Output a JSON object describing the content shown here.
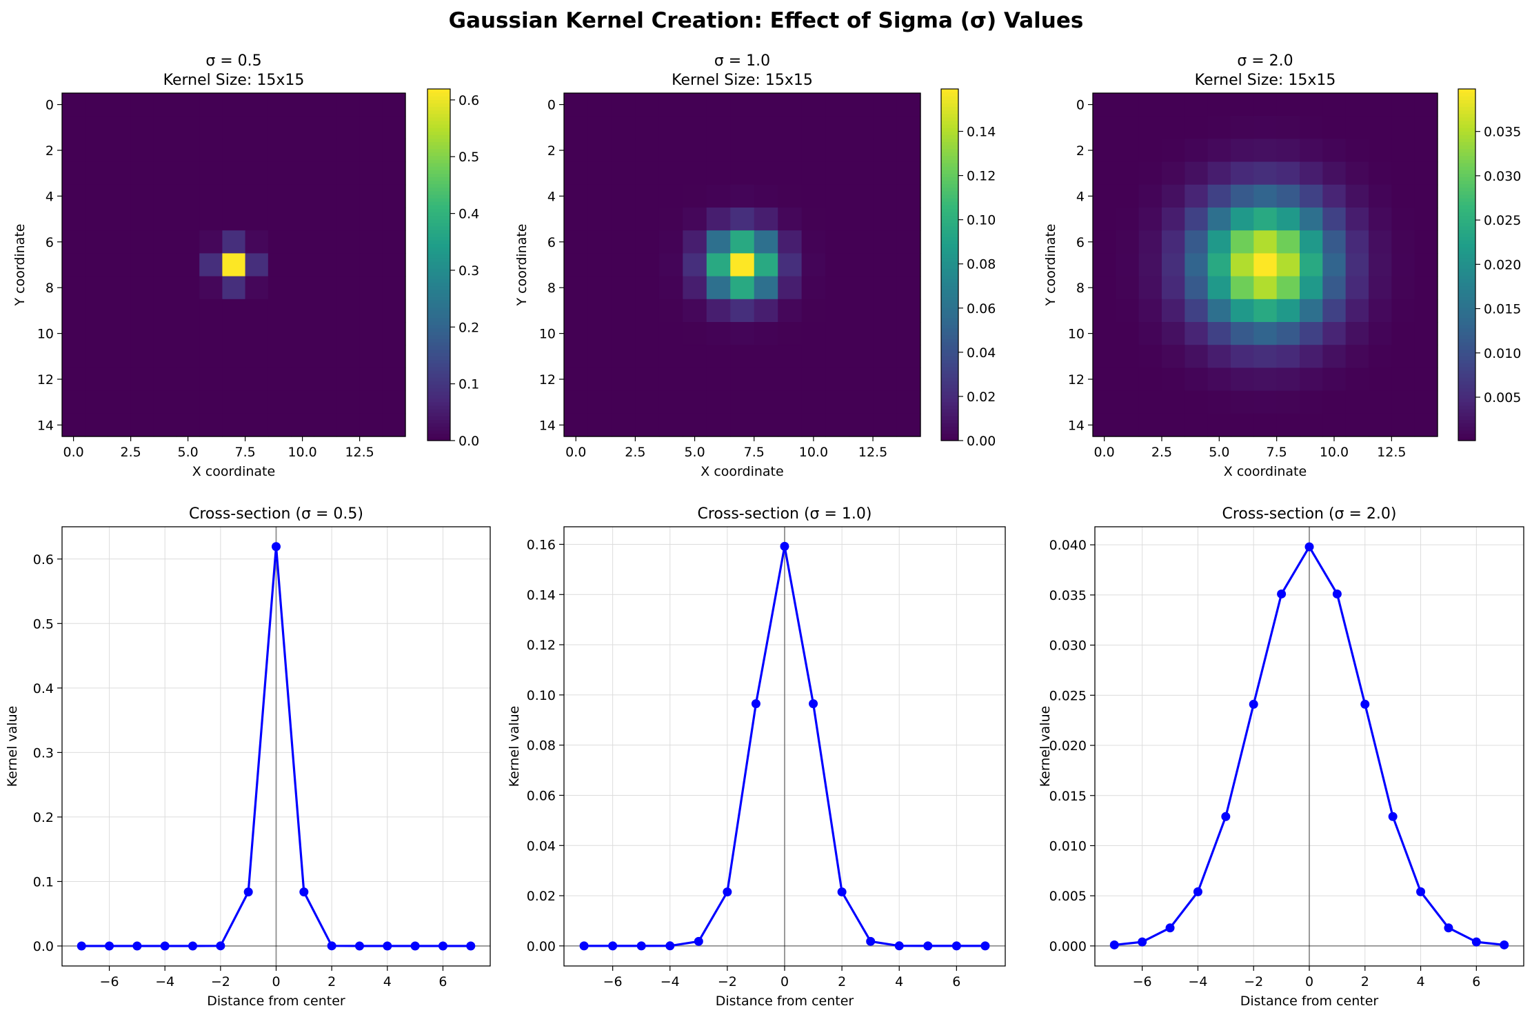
{
  "figure": {
    "title": "Gaussian Kernel Creation: Effect of Sigma (σ) Values"
  },
  "colormap": {
    "name": "viridis",
    "stops": [
      "#440154",
      "#482878",
      "#3e4989",
      "#31688e",
      "#26828e",
      "#1f9e89",
      "#35b779",
      "#6ece58",
      "#b5de2b",
      "#fde725"
    ]
  },
  "line_color": "#0000ff",
  "chart_data": [
    {
      "type": "heatmap",
      "sigma": 0.5,
      "title_line1": "σ = 0.5",
      "title_line2": "Kernel Size: 15x15",
      "xlabel": "X coordinate",
      "ylabel": "Y coordinate",
      "size": 15,
      "x_ticks": [
        "0.0",
        "2.5",
        "5.0",
        "7.5",
        "10.0",
        "12.5"
      ],
      "y_ticks": [
        "0",
        "2",
        "4",
        "6",
        "8",
        "10",
        "12",
        "14"
      ],
      "value_range": [
        0,
        0.6193
      ],
      "colorbar_ticks": [
        "0.0",
        "0.1",
        "0.2",
        "0.3",
        "0.4",
        "0.5",
        "0.6"
      ],
      "colorbar_tick_values": [
        0,
        0.1,
        0.2,
        0.3,
        0.4,
        0.5,
        0.6
      ]
    },
    {
      "type": "heatmap",
      "sigma": 1.0,
      "title_line1": "σ = 1.0",
      "title_line2": "Kernel Size: 15x15",
      "xlabel": "X coordinate",
      "ylabel": "Y coordinate",
      "size": 15,
      "x_ticks": [
        "0.0",
        "2.5",
        "5.0",
        "7.5",
        "10.0",
        "12.5"
      ],
      "y_ticks": [
        "0",
        "2",
        "4",
        "6",
        "8",
        "10",
        "12",
        "14"
      ],
      "value_range": [
        0,
        0.1592
      ],
      "colorbar_ticks": [
        "0.00",
        "0.02",
        "0.04",
        "0.06",
        "0.08",
        "0.10",
        "0.12",
        "0.14"
      ],
      "colorbar_tick_values": [
        0,
        0.02,
        0.04,
        0.06,
        0.08,
        0.1,
        0.12,
        0.14
      ]
    },
    {
      "type": "heatmap",
      "sigma": 2.0,
      "title_line1": "σ = 2.0",
      "title_line2": "Kernel Size: 15x15",
      "xlabel": "X coordinate",
      "ylabel": "Y coordinate",
      "size": 15,
      "x_ticks": [
        "0.0",
        "2.5",
        "5.0",
        "7.5",
        "10.0",
        "12.5"
      ],
      "y_ticks": [
        "0",
        "2",
        "4",
        "6",
        "8",
        "10",
        "12",
        "14"
      ],
      "value_range": [
        0.0001,
        0.0398
      ],
      "colorbar_ticks": [
        "0.005",
        "0.010",
        "0.015",
        "0.020",
        "0.025",
        "0.030",
        "0.035"
      ],
      "colorbar_tick_values": [
        0.005,
        0.01,
        0.015,
        0.02,
        0.025,
        0.03,
        0.035
      ]
    },
    {
      "type": "line",
      "title": "Cross-section (σ = 0.5)",
      "xlabel": "Distance from center",
      "ylabel": "Kernel value",
      "grid": true,
      "xlim": [
        -7.7,
        7.7
      ],
      "ylim": [
        -0.031,
        0.65
      ],
      "x_ticks": [
        "−6",
        "−4",
        "−2",
        "0",
        "2",
        "4",
        "6"
      ],
      "x_tick_values": [
        -6,
        -4,
        -2,
        0,
        2,
        4,
        6
      ],
      "y_ticks": [
        "0.0",
        "0.1",
        "0.2",
        "0.3",
        "0.4",
        "0.5",
        "0.6"
      ],
      "y_tick_values": [
        0,
        0.1,
        0.2,
        0.3,
        0.4,
        0.5,
        0.6
      ],
      "x": [
        -7,
        -6,
        -5,
        -4,
        -3,
        -2,
        -1,
        0,
        1,
        2,
        3,
        4,
        5,
        6,
        7
      ],
      "y": [
        0,
        0,
        0,
        0,
        0,
        0.0002,
        0.0838,
        0.6193,
        0.0838,
        0.0002,
        0,
        0,
        0,
        0,
        0
      ]
    },
    {
      "type": "line",
      "title": "Cross-section (σ = 1.0)",
      "xlabel": "Distance from center",
      "ylabel": "Kernel value",
      "grid": true,
      "xlim": [
        -7.7,
        7.7
      ],
      "ylim": [
        -0.008,
        0.167
      ],
      "x_ticks": [
        "−6",
        "−4",
        "−2",
        "0",
        "2",
        "4",
        "6"
      ],
      "x_tick_values": [
        -6,
        -4,
        -2,
        0,
        2,
        4,
        6
      ],
      "y_ticks": [
        "0.00",
        "0.02",
        "0.04",
        "0.06",
        "0.08",
        "0.10",
        "0.12",
        "0.14",
        "0.16"
      ],
      "y_tick_values": [
        0,
        0.02,
        0.04,
        0.06,
        0.08,
        0.1,
        0.12,
        0.14,
        0.16
      ],
      "x": [
        -7,
        -6,
        -5,
        -4,
        -3,
        -2,
        -1,
        0,
        1,
        2,
        3,
        4,
        5,
        6,
        7
      ],
      "y": [
        0,
        0,
        0,
        2e-05,
        0.0018,
        0.0215,
        0.0965,
        0.1592,
        0.0965,
        0.0215,
        0.0018,
        2e-05,
        0,
        0,
        0
      ]
    },
    {
      "type": "line",
      "title": "Cross-section (σ = 2.0)",
      "xlabel": "Distance from center",
      "ylabel": "Kernel value",
      "grid": true,
      "xlim": [
        -7.7,
        7.7
      ],
      "ylim": [
        -0.002,
        0.0418
      ],
      "x_ticks": [
        "−6",
        "−4",
        "−2",
        "0",
        "2",
        "4",
        "6"
      ],
      "x_tick_values": [
        -6,
        -4,
        -2,
        0,
        2,
        4,
        6
      ],
      "y_ticks": [
        "0.000",
        "0.005",
        "0.010",
        "0.015",
        "0.020",
        "0.025",
        "0.030",
        "0.035",
        "0.040"
      ],
      "y_tick_values": [
        0,
        0.005,
        0.01,
        0.015,
        0.02,
        0.025,
        0.03,
        0.035,
        0.04
      ],
      "x": [
        -7,
        -6,
        -5,
        -4,
        -3,
        -2,
        -1,
        0,
        1,
        2,
        3,
        4,
        5,
        6,
        7
      ],
      "y": [
        0.0001,
        0.0004,
        0.0018,
        0.0054,
        0.0129,
        0.0241,
        0.0351,
        0.0398,
        0.0351,
        0.0241,
        0.0129,
        0.0054,
        0.0018,
        0.0004,
        0.0001
      ]
    }
  ]
}
